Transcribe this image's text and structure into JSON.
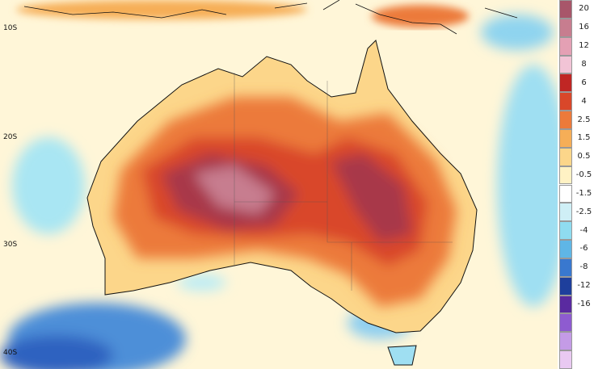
{
  "map": {
    "latitude_labels": [
      {
        "key": "lat_10s",
        "text": "10S"
      },
      {
        "key": "lat_20s",
        "text": "20S"
      },
      {
        "key": "lat_30s",
        "text": "30S"
      },
      {
        "key": "lat_40s",
        "text": "40S"
      }
    ]
  },
  "legend": {
    "ticks": [
      "20",
      "16",
      "12",
      "8",
      "6",
      "4",
      "2.5",
      "1.5",
      "0.5",
      "-0.5",
      "-1.5",
      "-2.5",
      "-4",
      "-6",
      "-8",
      "-12",
      "-16"
    ],
    "colors": [
      "#a8566a",
      "#c77d8f",
      "#e4a0b4",
      "#f2c4d6",
      "#c02624",
      "#d9472a",
      "#ec7a3a",
      "#f6ae57",
      "#fcd68a",
      "#fff2c4",
      "#ffffff",
      "#cfeff6",
      "#8fdcf0",
      "#5fb6e6",
      "#3978cf",
      "#1e3f9c",
      "#5a2aa0",
      "#8e5bd0",
      "#c49be6",
      "#e9c9f2"
    ]
  }
}
